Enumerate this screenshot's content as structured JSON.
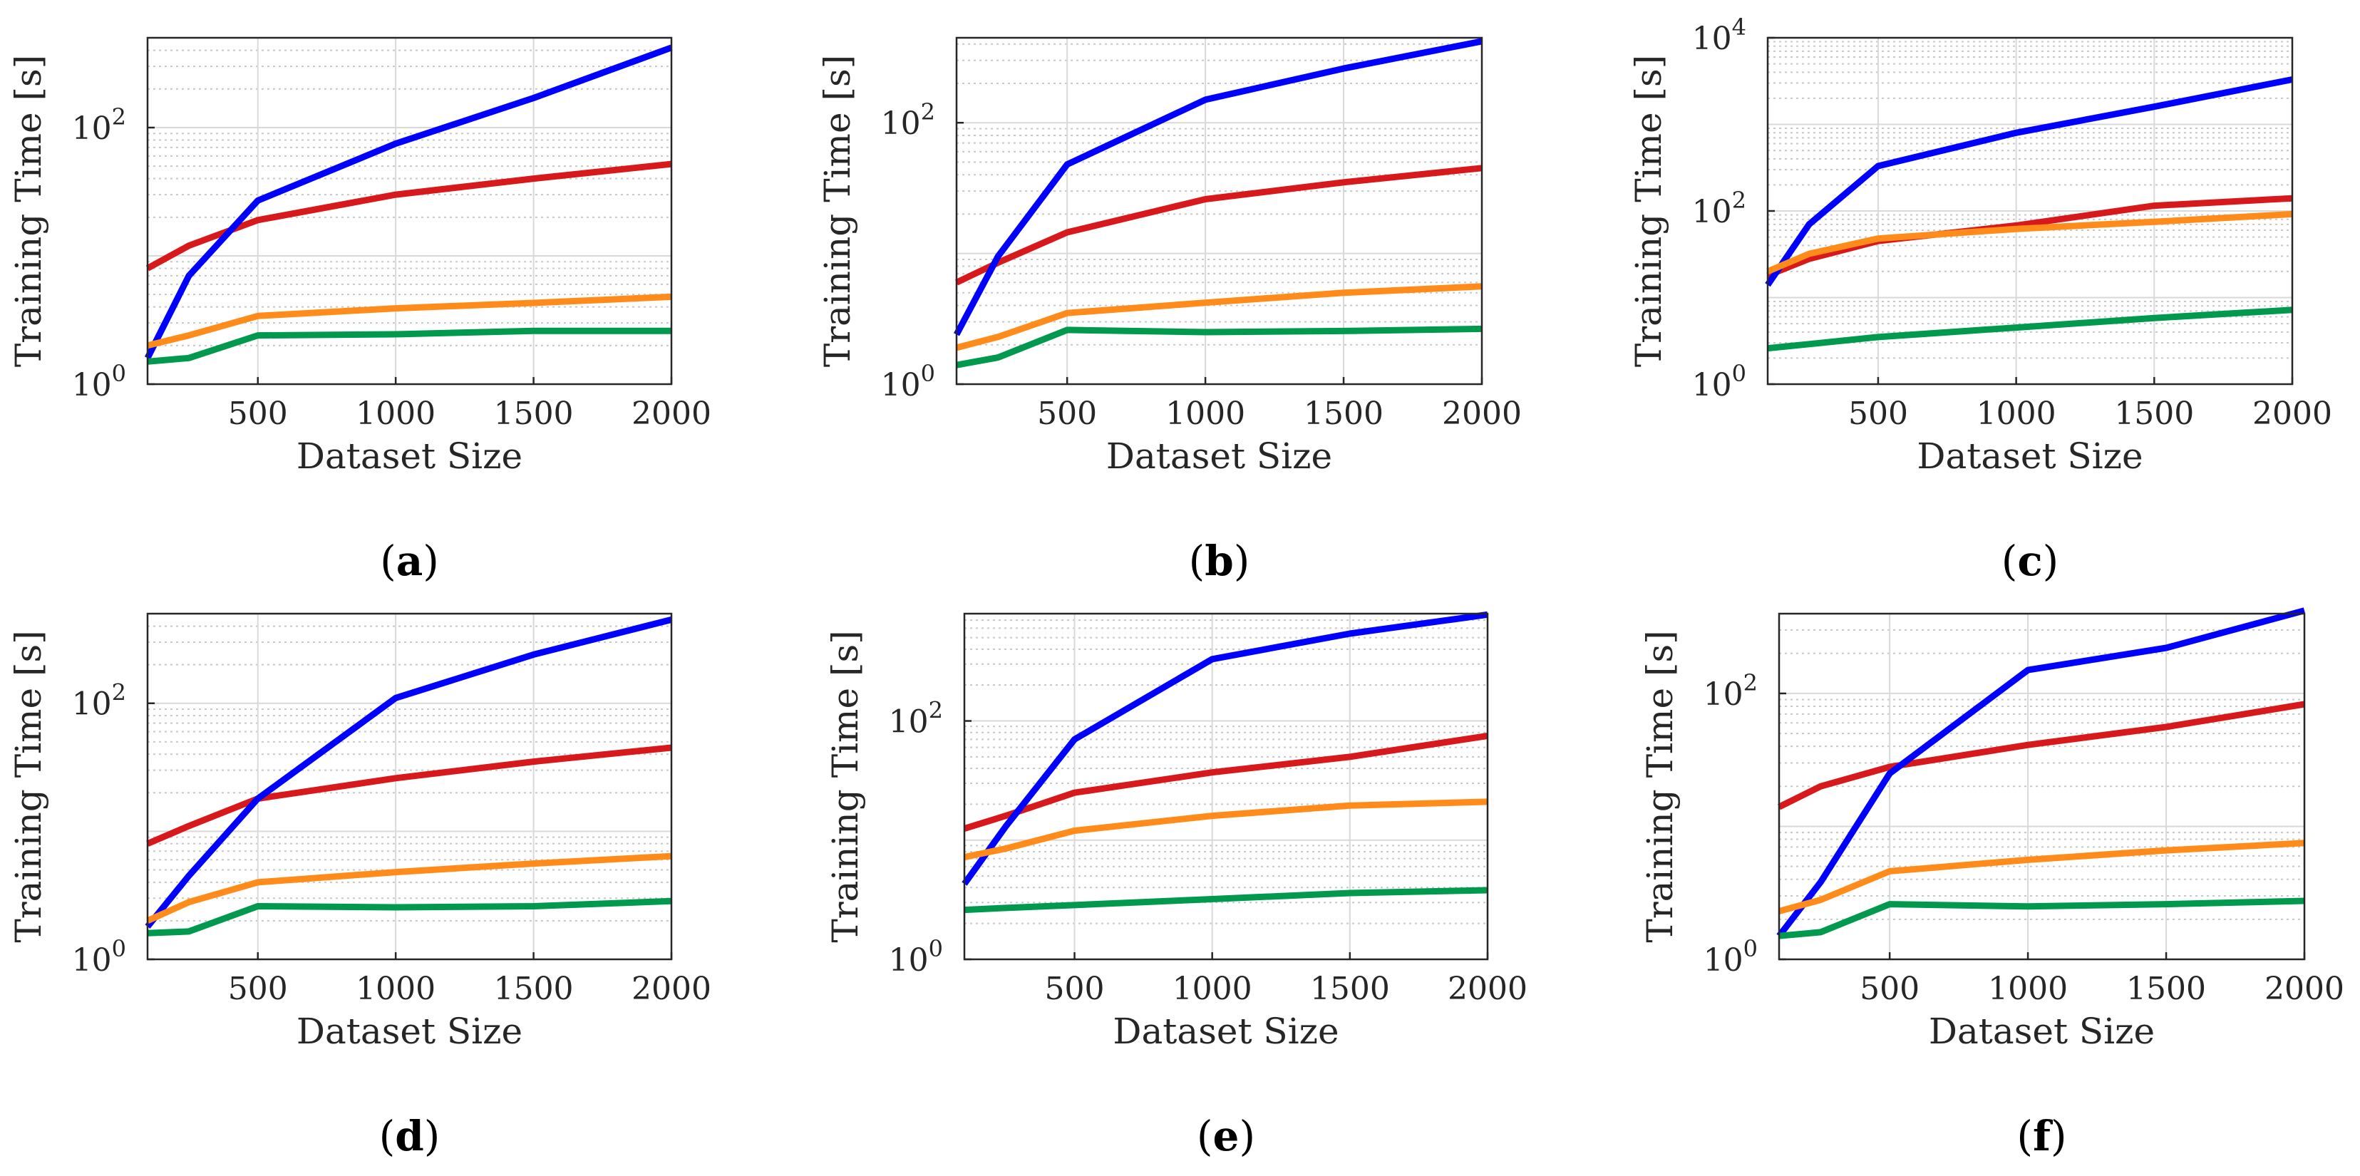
{
  "figure": {
    "colors": {
      "red": "#d7191c",
      "blue": "#0000ff",
      "orange": "#ff8c1a",
      "green": "#00994d",
      "grid_major": "#d9d9d9",
      "grid_minor": "#c8c8c8",
      "axis": "#262626"
    }
  },
  "chart_data": [
    {
      "type": "line",
      "panel": "a",
      "panel_label": "a",
      "xlabel": "Dataset Size",
      "ylabel": "Training Time [s]",
      "yscale": "log",
      "xlim": [
        100,
        2000
      ],
      "ylim_exp": [
        0,
        2.7
      ],
      "x_ticks": [
        "500",
        "1000",
        "1500",
        "2000"
      ],
      "y_ticks": [
        {
          "base": "10",
          "exp": "0"
        },
        {
          "base": "10",
          "exp": "2"
        }
      ],
      "x": [
        100,
        250,
        500,
        1000,
        1500,
        2000
      ],
      "series": [
        {
          "name": "red",
          "color": "red",
          "values": [
            8,
            12,
            19,
            30,
            40,
            52
          ]
        },
        {
          "name": "blue",
          "color": "blue",
          "values": [
            1.6,
            7,
            27,
            75,
            170,
            420
          ]
        },
        {
          "name": "orange",
          "color": "orange",
          "values": [
            2.0,
            2.4,
            3.4,
            3.9,
            4.3,
            4.8
          ]
        },
        {
          "name": "green",
          "color": "green",
          "values": [
            1.5,
            1.6,
            2.4,
            2.45,
            2.6,
            2.6
          ]
        }
      ]
    },
    {
      "type": "line",
      "panel": "b",
      "panel_label": "b",
      "xlabel": "Dataset Size",
      "ylabel": "Training Time [s]",
      "yscale": "log",
      "xlim": [
        100,
        2000
      ],
      "ylim_exp": [
        0,
        2.65
      ],
      "x_ticks": [
        "500",
        "1000",
        "1500",
        "2000"
      ],
      "y_ticks": [
        {
          "base": "10",
          "exp": "0"
        },
        {
          "base": "10",
          "exp": "2"
        }
      ],
      "x": [
        100,
        250,
        500,
        1000,
        1500,
        2000
      ],
      "series": [
        {
          "name": "red",
          "color": "red",
          "values": [
            6,
            8.5,
            14.5,
            26,
            35,
            45
          ]
        },
        {
          "name": "blue",
          "color": "blue",
          "values": [
            2.4,
            9.5,
            48,
            150,
            260,
            420
          ]
        },
        {
          "name": "orange",
          "color": "orange",
          "values": [
            1.9,
            2.3,
            3.5,
            4.2,
            5.0,
            5.6
          ]
        },
        {
          "name": "green",
          "color": "green",
          "values": [
            1.4,
            1.6,
            2.6,
            2.5,
            2.55,
            2.65
          ]
        }
      ]
    },
    {
      "type": "line",
      "panel": "c",
      "panel_label": "c",
      "xlabel": "Dataset Size",
      "ylabel": "Training Time [s]",
      "yscale": "log",
      "xlim": [
        100,
        2000
      ],
      "ylim_exp": [
        0,
        4
      ],
      "x_ticks": [
        "500",
        "1000",
        "1500",
        "2000"
      ],
      "y_ticks": [
        {
          "base": "10",
          "exp": "0"
        },
        {
          "base": "10",
          "exp": "2"
        },
        {
          "base": "10",
          "exp": "4"
        }
      ],
      "x": [
        100,
        250,
        500,
        1000,
        1500,
        2000
      ],
      "series": [
        {
          "name": "red",
          "color": "red",
          "values": [
            18,
            28,
            45,
            68,
            115,
            140
          ]
        },
        {
          "name": "blue",
          "color": "blue",
          "values": [
            14,
            70,
            330,
            800,
            1600,
            3300
          ]
        },
        {
          "name": "orange",
          "color": "orange",
          "values": [
            20,
            32,
            48,
            62,
            75,
            92
          ]
        },
        {
          "name": "green",
          "color": "green",
          "values": [
            2.6,
            2.9,
            3.5,
            4.5,
            5.8,
            7.2
          ]
        }
      ]
    },
    {
      "type": "line",
      "panel": "d",
      "panel_label": "d",
      "xlabel": "Dataset Size",
      "ylabel": "Training Time [s]",
      "yscale": "log",
      "xlim": [
        100,
        2000
      ],
      "ylim_exp": [
        0,
        2.7
      ],
      "x_ticks": [
        "500",
        "1000",
        "1500",
        "2000"
      ],
      "y_ticks": [
        {
          "base": "10",
          "exp": "0"
        },
        {
          "base": "10",
          "exp": "2"
        }
      ],
      "x": [
        100,
        250,
        500,
        1000,
        1500,
        2000
      ],
      "series": [
        {
          "name": "red",
          "color": "red",
          "values": [
            8,
            11,
            18,
            26,
            35,
            45
          ]
        },
        {
          "name": "blue",
          "color": "blue",
          "values": [
            1.8,
            4.5,
            18,
            110,
            240,
            450
          ]
        },
        {
          "name": "orange",
          "color": "orange",
          "values": [
            2.0,
            2.8,
            4.0,
            4.8,
            5.6,
            6.4
          ]
        },
        {
          "name": "green",
          "color": "green",
          "values": [
            1.6,
            1.65,
            2.6,
            2.55,
            2.6,
            2.85
          ]
        }
      ]
    },
    {
      "type": "line",
      "panel": "e",
      "panel_label": "e",
      "xlabel": "Dataset Size",
      "ylabel": "Training Time [s]",
      "yscale": "log",
      "xlim": [
        100,
        2000
      ],
      "ylim_exp": [
        0,
        2.9
      ],
      "x_ticks": [
        "500",
        "1000",
        "1500",
        "2000"
      ],
      "y_ticks": [
        {
          "base": "10",
          "exp": "0"
        },
        {
          "base": "10",
          "exp": "2"
        }
      ],
      "x": [
        100,
        250,
        500,
        1000,
        1500,
        2000
      ],
      "series": [
        {
          "name": "red",
          "color": "red",
          "values": [
            12.5,
            16,
            25,
            37,
            50,
            75
          ]
        },
        {
          "name": "blue",
          "color": "blue",
          "values": [
            4.3,
            13,
            70,
            330,
            540,
            780
          ]
        },
        {
          "name": "orange",
          "color": "orange",
          "values": [
            7.2,
            8.5,
            12,
            16,
            19.5,
            21
          ]
        },
        {
          "name": "green",
          "color": "green",
          "values": [
            2.6,
            2.7,
            2.85,
            3.2,
            3.6,
            3.8
          ]
        }
      ]
    },
    {
      "type": "line",
      "panel": "f",
      "panel_label": "f",
      "xlabel": "Dataset Size",
      "ylabel": "Training Time [s]",
      "yscale": "log",
      "xlim": [
        100,
        2000
      ],
      "ylim_exp": [
        0,
        2.6
      ],
      "x_ticks": [
        "500",
        "1000",
        "1500",
        "2000"
      ],
      "y_ticks": [
        {
          "base": "10",
          "exp": "0"
        },
        {
          "base": "10",
          "exp": "2"
        }
      ],
      "x": [
        100,
        250,
        500,
        1000,
        1500,
        2000
      ],
      "series": [
        {
          "name": "red",
          "color": "red",
          "values": [
            14,
            20,
            28,
            41,
            56,
            83
          ]
        },
        {
          "name": "blue",
          "color": "blue",
          "values": [
            1.5,
            3.8,
            25,
            150,
            220,
            420
          ]
        },
        {
          "name": "orange",
          "color": "orange",
          "values": [
            2.3,
            2.8,
            4.6,
            5.6,
            6.6,
            7.5
          ]
        },
        {
          "name": "green",
          "color": "green",
          "values": [
            1.5,
            1.6,
            2.6,
            2.5,
            2.6,
            2.75
          ]
        }
      ]
    }
  ]
}
